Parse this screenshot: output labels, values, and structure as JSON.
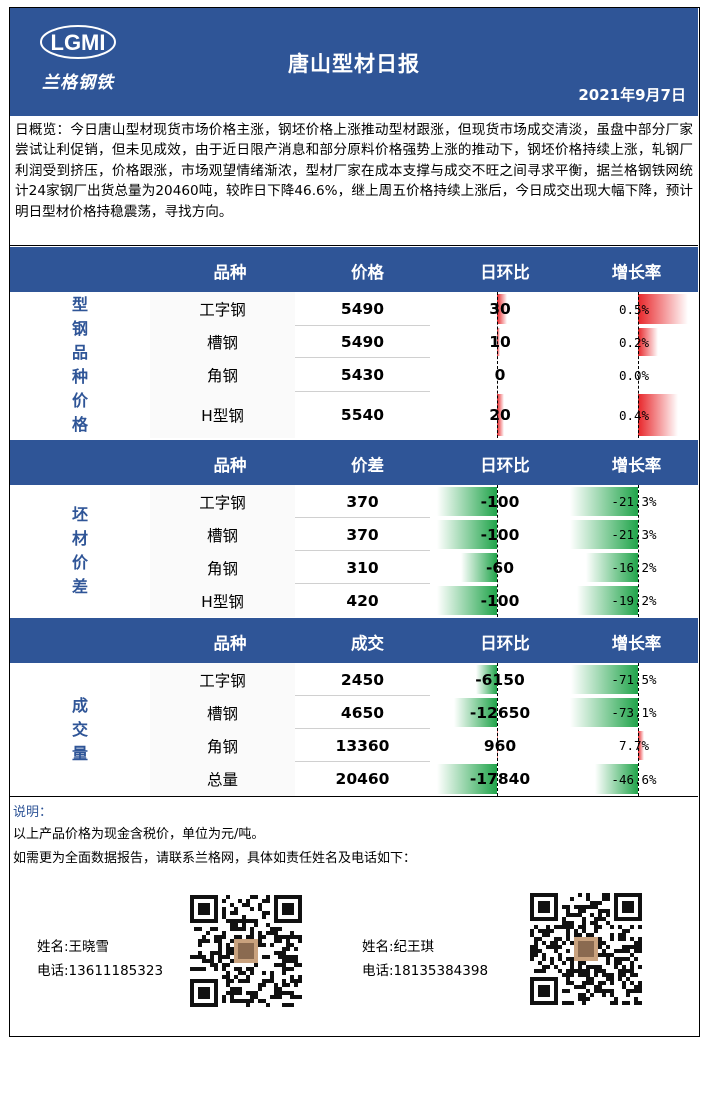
{
  "header": {
    "logo_letters": "LGMI",
    "logo_caption": "兰格钢铁",
    "title": "唐山型材日报",
    "date": "2021年9月7日"
  },
  "summary": "日概览：今日唐山型材现货市场价格主涨，钢坯价格上涨推动型材跟涨，但现货市场成交清淡，虽盘中部分厂家尝试让利促销，但未见成效，由于近日限产消息和部分原料价格强势上涨的推动下，钢坯价格持续上涨，轧钢厂利润受到挤压，价格跟涨，市场观望情绪渐浓，型材厂家在成本支撑与成交不旺之间寻求平衡，据兰格钢铁网统计24家钢厂出货总量为20460吨，较昨日下降46.6%，继上周五价格持续上涨后，今日成交出现大幅下降，预计明日型材价格持稳震荡，寻找方向。",
  "colors": {
    "header_bg": "#2f5597",
    "label_blue": "#2f5597",
    "up_red": "#e8262a",
    "down_green": "#20a44a"
  },
  "sections": [
    {
      "id": "price",
      "label": "型钢品种价格",
      "headers": [
        "品种",
        "价格",
        "日环比",
        "增长率"
      ],
      "change_max": 30,
      "rate_max": 0.5,
      "rows": [
        {
          "name": "工字钢",
          "value": "5490",
          "change": 30,
          "change_text": "30",
          "rate": 0.5,
          "rate_text": "0.5%"
        },
        {
          "name": "槽钢",
          "value": "5490",
          "change": 10,
          "change_text": "10",
          "rate": 0.2,
          "rate_text": "0.2%"
        },
        {
          "name": "角钢",
          "value": "5430",
          "change": 0,
          "change_text": "0",
          "rate": 0.0,
          "rate_text": "0.0%"
        },
        {
          "name": "H型钢",
          "value": "5540",
          "change": 20,
          "change_text": "20",
          "rate": 0.4,
          "rate_text": "0.4%"
        }
      ]
    },
    {
      "id": "spread",
      "label": "坯材价差",
      "headers": [
        "品种",
        "价差",
        "日环比",
        "增长率"
      ],
      "change_max": 100,
      "rate_max": 21.3,
      "rows": [
        {
          "name": "工字钢",
          "value": "370",
          "change": -100,
          "change_text": "-100",
          "rate": -21.3,
          "rate_text": "-21.3%"
        },
        {
          "name": "槽钢",
          "value": "370",
          "change": -100,
          "change_text": "-100",
          "rate": -21.3,
          "rate_text": "-21.3%"
        },
        {
          "name": "角钢",
          "value": "310",
          "change": -60,
          "change_text": "-60",
          "rate": -16.2,
          "rate_text": "-16.2%"
        },
        {
          "name": "H型钢",
          "value": "420",
          "change": -100,
          "change_text": "-100",
          "rate": -19.2,
          "rate_text": "-19.2%"
        }
      ]
    },
    {
      "id": "volume",
      "label": "成交量",
      "headers": [
        "品种",
        "成交",
        "日环比",
        "增长率"
      ],
      "change_max": 17840,
      "rate_max": 73.1,
      "rows": [
        {
          "name": "工字钢",
          "value": "2450",
          "change": -6150,
          "change_text": "-6150",
          "rate": -71.5,
          "rate_text": "-71.5%"
        },
        {
          "name": "槽钢",
          "value": "4650",
          "change": -12650,
          "change_text": "-12650",
          "rate": -73.1,
          "rate_text": "-73.1%"
        },
        {
          "name": "角钢",
          "value": "13360",
          "change": 960,
          "change_text": "960",
          "rate": 7.7,
          "rate_text": "7.7%"
        },
        {
          "name": "总量",
          "value": "20460",
          "change": -17840,
          "change_text": "-17840",
          "rate": -46.6,
          "rate_text": "-46.6%"
        }
      ]
    }
  ],
  "notes": {
    "title": "说明：",
    "line1": "以上产品价格为现金含税价，单位为元/吨。",
    "line2": "如需更为全面数据报告，请联系兰格网，具体如责任姓名及电话如下："
  },
  "contacts": [
    {
      "name": "姓名:王晓雪",
      "phone": "电话:13611185323"
    },
    {
      "name": "姓名:纪王琪",
      "phone": "电话:18135384398"
    }
  ]
}
